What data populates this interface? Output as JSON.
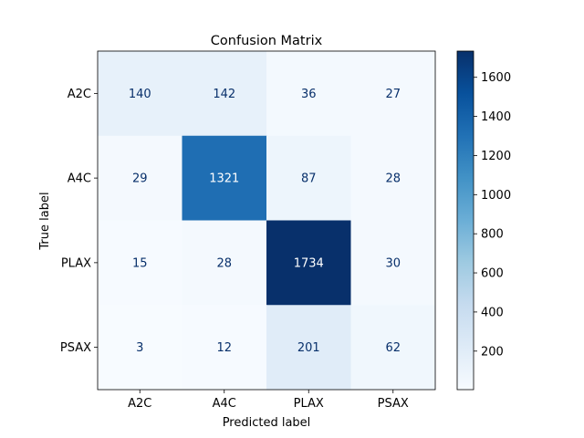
{
  "chart_data": {
    "type": "heatmap",
    "title": "Confusion Matrix",
    "xlabel": "Predicted label",
    "ylabel": "True label",
    "x_categories": [
      "A2C",
      "A4C",
      "PLAX",
      "PSAX"
    ],
    "y_categories": [
      "A2C",
      "A4C",
      "PLAX",
      "PSAX"
    ],
    "values": [
      [
        140,
        142,
        36,
        27
      ],
      [
        29,
        1321,
        87,
        28
      ],
      [
        15,
        28,
        1734,
        30
      ],
      [
        3,
        12,
        201,
        62
      ]
    ],
    "colormap": "Blues",
    "colorbar": {
      "min": 3,
      "max": 1734,
      "ticks": [
        200,
        400,
        600,
        800,
        1000,
        1200,
        1400,
        1600
      ]
    },
    "text_colors": {
      "dark": "#08306b",
      "light": "#ffffff"
    }
  }
}
